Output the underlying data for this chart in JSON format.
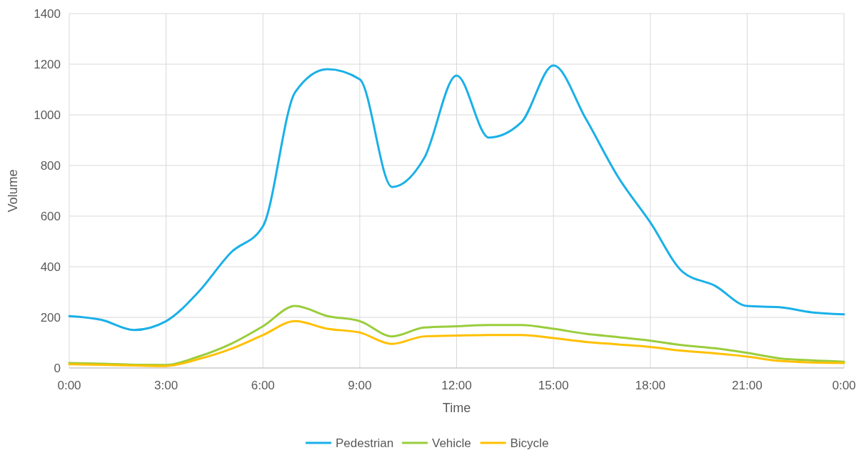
{
  "chart_data": {
    "type": "line",
    "xlabel": "Time",
    "ylabel": "Volume",
    "x": [
      0,
      1,
      2,
      3,
      4,
      5,
      6,
      7,
      8,
      9,
      10,
      11,
      12,
      13,
      14,
      15,
      16,
      17,
      18,
      19,
      20,
      21,
      22,
      23,
      24
    ],
    "series": [
      {
        "name": "Pedestrian",
        "color": "#1ab0e8",
        "values": [
          205,
          190,
          150,
          185,
          300,
          455,
          560,
          1090,
          1180,
          1140,
          715,
          830,
          1155,
          910,
          970,
          1195,
          985,
          755,
          575,
          380,
          325,
          245,
          240,
          220,
          212
        ]
      },
      {
        "name": "Vehicle",
        "color": "#9acd3c",
        "values": [
          20,
          17,
          13,
          12,
          45,
          95,
          165,
          245,
          205,
          185,
          125,
          160,
          165,
          170,
          170,
          155,
          135,
          122,
          108,
          90,
          78,
          60,
          38,
          30,
          25
        ]
      },
      {
        "name": "Bicycle",
        "color": "#ffc000",
        "values": [
          15,
          13,
          10,
          8,
          35,
          75,
          130,
          185,
          155,
          140,
          95,
          125,
          128,
          130,
          130,
          118,
          103,
          93,
          83,
          68,
          58,
          45,
          28,
          22,
          20
        ]
      }
    ],
    "xlim": [
      0,
      24
    ],
    "xticks": [
      {
        "value": 0,
        "label": "0:00"
      },
      {
        "value": 3,
        "label": "3:00"
      },
      {
        "value": 6,
        "label": "6:00"
      },
      {
        "value": 9,
        "label": "9:00"
      },
      {
        "value": 12,
        "label": "12:00"
      },
      {
        "value": 15,
        "label": "15:00"
      },
      {
        "value": 18,
        "label": "18:00"
      },
      {
        "value": 21,
        "label": "21:00"
      },
      {
        "value": 24,
        "label": "0:00"
      }
    ],
    "ylim": [
      0,
      1400
    ],
    "yticks": [
      0,
      200,
      400,
      600,
      800,
      1000,
      1200,
      1400
    ],
    "grid": true,
    "legend": "bottom",
    "marker": "none",
    "line_style": "solid"
  }
}
